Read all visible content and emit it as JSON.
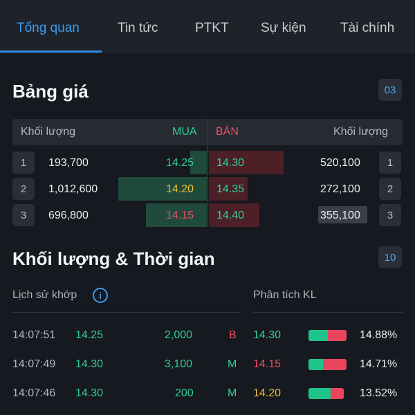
{
  "tabs": [
    {
      "label": "Tổng quan",
      "active": true
    },
    {
      "label": "Tin tức",
      "active": false
    },
    {
      "label": "PTKT",
      "active": false
    },
    {
      "label": "Sự kiện",
      "active": false
    },
    {
      "label": "Tài chính",
      "active": false
    }
  ],
  "price_board": {
    "title": "Bảng giá",
    "badge": "03",
    "header": {
      "bid_volume": "Khối lượng",
      "buy": "MUA",
      "sell": "BÁN",
      "ask_volume": "Khối lượng"
    },
    "levels": [
      {
        "level": "1",
        "bid_volume": "193,700",
        "bid_price": "14.25",
        "bid_color": "green",
        "ask_price": "14.30",
        "ask_color": "green",
        "ask_volume": "520,100",
        "ask_level": "1"
      },
      {
        "level": "2",
        "bid_volume": "1,012,600",
        "bid_price": "14.20",
        "bid_color": "yellow",
        "ask_price": "14.35",
        "ask_color": "green",
        "ask_volume": "272,100",
        "ask_level": "2"
      },
      {
        "level": "3",
        "bid_volume": "696,800",
        "bid_price": "14.15",
        "bid_color": "red",
        "ask_price": "14.40",
        "ask_color": "green",
        "ask_volume": "355,100",
        "ask_level": "3"
      }
    ]
  },
  "time_sales": {
    "title": "Khối lượng & Thời gian",
    "badge": "10",
    "history_label": "Lịch sử khớp",
    "info_icon": "info-icon",
    "analysis_label": "Phân tích KL",
    "trades": [
      {
        "time": "14:07:51",
        "price": "14.25",
        "volume": "2,000",
        "side": "B",
        "side_color": "red"
      },
      {
        "time": "14:07:49",
        "price": "14.30",
        "volume": "3,100",
        "side": "M",
        "side_color": "green"
      },
      {
        "time": "14:07:46",
        "price": "14.30",
        "volume": "200",
        "side": "M",
        "side_color": "green"
      }
    ],
    "analysis": [
      {
        "price": "14.30",
        "price_color": "green",
        "pct": "14.88%",
        "buy_fraction": 0.5
      },
      {
        "price": "14.15",
        "price_color": "red",
        "pct": "14.71%",
        "buy_fraction": 0.38
      },
      {
        "price": "14.20",
        "price_color": "yellow",
        "pct": "13.52%",
        "buy_fraction": 0.62
      }
    ]
  },
  "colors": {
    "green": "#2fd096",
    "red": "#ef4e63",
    "yellow": "#f3c334",
    "accent": "#3b9cf0"
  }
}
